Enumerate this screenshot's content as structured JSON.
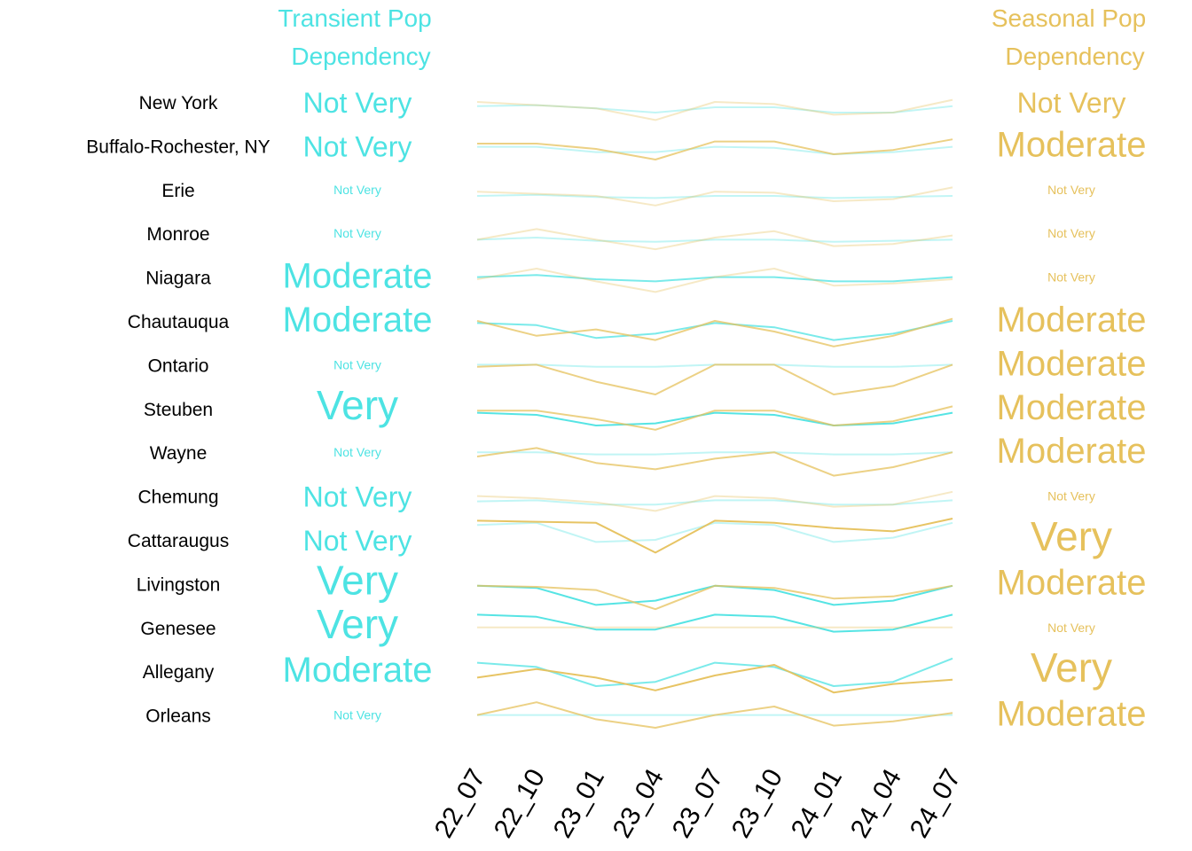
{
  "chart_data": {
    "type": "line",
    "title": "",
    "xlabel": "",
    "ylabel": "",
    "x": [
      "22_07",
      "22_10",
      "23_01",
      "23_04",
      "23_07",
      "23_10",
      "24_01",
      "24_04",
      "24_07"
    ],
    "header": {
      "transient": [
        "Transient Pop",
        "Dependency"
      ],
      "seasonal": [
        "Seasonal Pop",
        "Dependency"
      ]
    },
    "colors": {
      "transient": "#4de3e3",
      "seasonal": "#e6c15c",
      "label": "#000000"
    },
    "rows": [
      {
        "region": "New York",
        "transient": "Not Very",
        "seasonal": "Not Very",
        "transient_values": [
          0.2,
          0.15,
          0.3,
          0.5,
          0.25,
          0.25,
          0.5,
          0.5,
          0.2
        ],
        "seasonal_values": [
          0.0,
          0.15,
          0.3,
          0.85,
          0.0,
          0.1,
          0.6,
          0.5,
          -0.1
        ]
      },
      {
        "region": "Buffalo-Rochester, NY",
        "transient": "Not Very",
        "seasonal": "Moderate",
        "transient_values": [
          0.05,
          0.05,
          0.3,
          0.3,
          0.05,
          0.1,
          0.4,
          0.3,
          0.05
        ],
        "seasonal_values": [
          -0.1,
          -0.1,
          0.15,
          0.65,
          -0.2,
          -0.2,
          0.4,
          0.2,
          -0.3
        ]
      },
      {
        "region": "Erie",
        "transient": "Not Very",
        "seasonal": "Not Very",
        "transient_values": [
          0.3,
          0.25,
          0.35,
          0.4,
          0.3,
          0.3,
          0.4,
          0.35,
          0.3
        ],
        "seasonal_values": [
          0.1,
          0.2,
          0.3,
          0.75,
          0.1,
          0.15,
          0.55,
          0.45,
          -0.1
        ]
      },
      {
        "region": "Monroe",
        "transient": "Not Very",
        "seasonal": "Not Very",
        "transient_values": [
          0.3,
          0.2,
          0.35,
          0.4,
          0.3,
          0.3,
          0.4,
          0.35,
          0.3
        ],
        "seasonal_values": [
          0.3,
          -0.2,
          0.3,
          0.75,
          0.2,
          -0.1,
          0.6,
          0.5,
          0.1
        ]
      },
      {
        "region": "Niagara",
        "transient": "Moderate",
        "seasonal": "Not Very",
        "transient_values": [
          0.0,
          -0.1,
          0.1,
          0.2,
          0.0,
          0.0,
          0.2,
          0.2,
          0.0
        ],
        "seasonal_values": [
          0.1,
          -0.4,
          0.2,
          0.7,
          0.0,
          -0.4,
          0.4,
          0.3,
          0.1
        ]
      },
      {
        "region": "Chautauqua",
        "transient": "Moderate",
        "seasonal": "Moderate",
        "transient_values": [
          0.1,
          0.2,
          0.8,
          0.6,
          0.1,
          0.3,
          0.9,
          0.6,
          0.0
        ],
        "seasonal_values": [
          0.0,
          0.7,
          0.4,
          0.9,
          0.0,
          0.5,
          1.2,
          0.7,
          -0.1
        ]
      },
      {
        "region": "Ontario",
        "transient": "Not Very",
        "seasonal": "Moderate",
        "transient_values": [
          0.0,
          0.0,
          0.1,
          0.1,
          0.0,
          0.0,
          0.1,
          0.1,
          0.0
        ],
        "seasonal_values": [
          0.1,
          0.0,
          0.8,
          1.4,
          0.0,
          0.0,
          1.4,
          1.0,
          0.0
        ]
      },
      {
        "region": "Steuben",
        "transient": "Very",
        "seasonal": "Moderate",
        "transient_values": [
          0.2,
          0.3,
          0.8,
          0.7,
          0.2,
          0.3,
          0.8,
          0.7,
          0.2
        ],
        "seasonal_values": [
          0.1,
          0.1,
          0.5,
          1.0,
          0.1,
          0.1,
          0.8,
          0.6,
          -0.1
        ]
      },
      {
        "region": "Wayne",
        "transient": "Not Very",
        "seasonal": "Moderate",
        "transient_values": [
          0.0,
          0.0,
          0.1,
          0.1,
          0.0,
          0.0,
          0.1,
          0.1,
          0.0
        ],
        "seasonal_values": [
          0.2,
          -0.2,
          0.5,
          0.8,
          0.3,
          0.0,
          1.1,
          0.7,
          0.0
        ]
      },
      {
        "region": "Chemung",
        "transient": "Not Very",
        "seasonal": "Not Very",
        "transient_values": [
          0.25,
          0.2,
          0.4,
          0.4,
          0.2,
          0.2,
          0.4,
          0.4,
          0.2
        ],
        "seasonal_values": [
          0.0,
          0.1,
          0.3,
          0.7,
          0.0,
          0.1,
          0.5,
          0.4,
          -0.2
        ]
      },
      {
        "region": "Cattaraugus",
        "transient": "Not Very",
        "seasonal": "Very",
        "transient_values": [
          -0.7,
          -0.8,
          0.1,
          0.0,
          -0.8,
          -0.7,
          0.1,
          -0.1,
          -0.8
        ],
        "seasonal_values": [
          -0.9,
          -0.85,
          -0.8,
          0.6,
          -0.9,
          -0.8,
          -0.55,
          -0.4,
          -1.0
        ]
      },
      {
        "region": "Livingston",
        "transient": "Very",
        "seasonal": "Moderate",
        "transient_values": [
          0.1,
          0.2,
          1.0,
          0.8,
          0.1,
          0.3,
          1.0,
          0.8,
          0.1
        ],
        "seasonal_values": [
          0.1,
          0.15,
          0.3,
          1.2,
          0.1,
          0.2,
          0.7,
          0.6,
          0.1
        ]
      },
      {
        "region": "Genesee",
        "transient": "Very",
        "seasonal": "Not Very",
        "transient_values": [
          -0.6,
          -0.5,
          0.1,
          0.1,
          -0.6,
          -0.5,
          0.2,
          0.1,
          -0.6
        ],
        "seasonal_values": [
          0.0,
          0.0,
          0.0,
          0.0,
          0.0,
          0.0,
          0.0,
          0.0,
          0.0
        ]
      },
      {
        "region": "Allegany",
        "transient": "Moderate",
        "seasonal": "Very",
        "transient_values": [
          -0.4,
          -0.2,
          0.7,
          0.5,
          -0.4,
          -0.2,
          0.7,
          0.5,
          -0.6
        ],
        "seasonal_values": [
          0.3,
          -0.1,
          0.3,
          0.9,
          0.2,
          -0.3,
          1.0,
          0.6,
          0.4
        ]
      },
      {
        "region": "Orleans",
        "transient": "Not Very",
        "seasonal": "Moderate",
        "transient_values": [
          0.0,
          0.0,
          0.0,
          0.0,
          0.0,
          0.0,
          0.0,
          0.0,
          0.0
        ],
        "seasonal_values": [
          0.0,
          -0.6,
          0.2,
          0.6,
          0.0,
          -0.4,
          0.5,
          0.3,
          -0.1
        ]
      }
    ]
  }
}
